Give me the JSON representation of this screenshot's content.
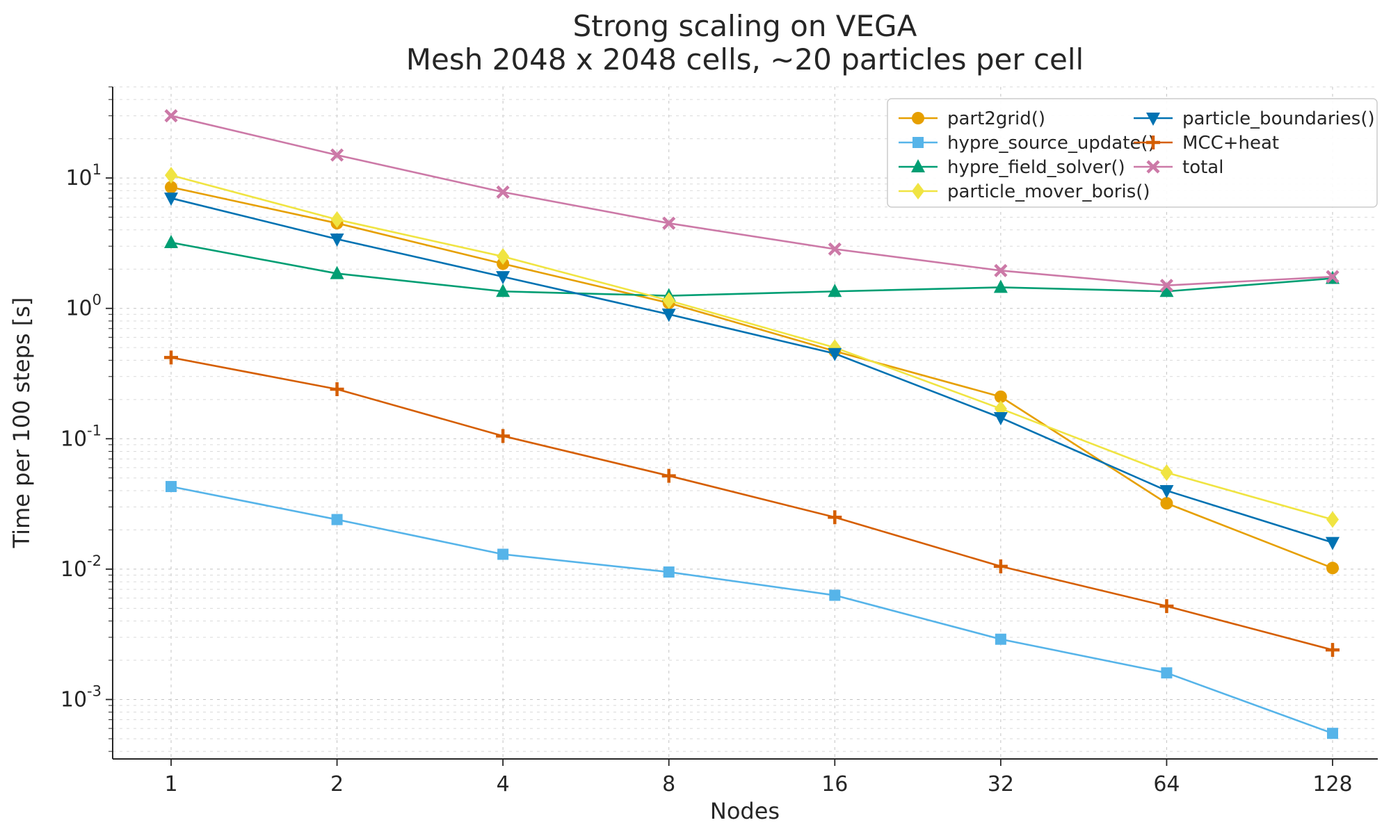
{
  "chart_data": {
    "type": "line",
    "title": "Strong scaling on VEGA",
    "subtitle": "Mesh 2048 x 2048 cells, ~20 particles per cell",
    "xlabel": "Nodes",
    "ylabel": "Time per 100 steps [s]",
    "x_scale": "log2",
    "y_scale": "log10",
    "grid": true,
    "legend_position": "upper right",
    "legend_columns": 2,
    "categories": [
      1,
      2,
      4,
      8,
      16,
      32,
      64,
      128
    ],
    "y_tick_exponents": [
      -3,
      -2,
      -1,
      0,
      1
    ],
    "ylim": [
      0.00035,
      50
    ],
    "series": [
      {
        "name": "part2grid()",
        "color": "#E69F00",
        "marker": "circle",
        "values": [
          8.5,
          4.5,
          2.2,
          1.1,
          0.47,
          0.21,
          0.032,
          0.0102
        ]
      },
      {
        "name": "hypre_source_update()",
        "color": "#56B4E9",
        "marker": "square",
        "values": [
          0.043,
          0.024,
          0.013,
          0.0095,
          0.0063,
          0.0029,
          0.0016,
          0.00055
        ]
      },
      {
        "name": "hypre_field_solver()",
        "color": "#009E73",
        "marker": "triangle-up",
        "values": [
          3.2,
          1.85,
          1.35,
          1.25,
          1.35,
          1.45,
          1.35,
          1.7
        ]
      },
      {
        "name": "particle_mover_boris()",
        "color": "#F0E442",
        "marker": "diamond",
        "values": [
          10.5,
          4.8,
          2.5,
          1.15,
          0.5,
          0.17,
          0.055,
          0.024
        ]
      },
      {
        "name": "particle_boundaries()",
        "color": "#0072B2",
        "marker": "triangle-down",
        "values": [
          7.0,
          3.4,
          1.75,
          0.9,
          0.45,
          0.145,
          0.04,
          0.016
        ]
      },
      {
        "name": "MCC+heat",
        "color": "#D55E00",
        "marker": "plus",
        "values": [
          0.42,
          0.24,
          0.105,
          0.052,
          0.025,
          0.0105,
          0.0052,
          0.0024
        ]
      },
      {
        "name": "total",
        "color": "#CC79A7",
        "marker": "x",
        "values": [
          30,
          15,
          7.8,
          4.5,
          2.85,
          1.95,
          1.5,
          1.75
        ]
      }
    ]
  },
  "style": {
    "axis_color": "#262626",
    "grid_major_color": "#c3c3c3",
    "grid_minor_color": "#dadada",
    "legend_border_color": "#cccccc",
    "legend_bg_color": "#ffffff"
  }
}
